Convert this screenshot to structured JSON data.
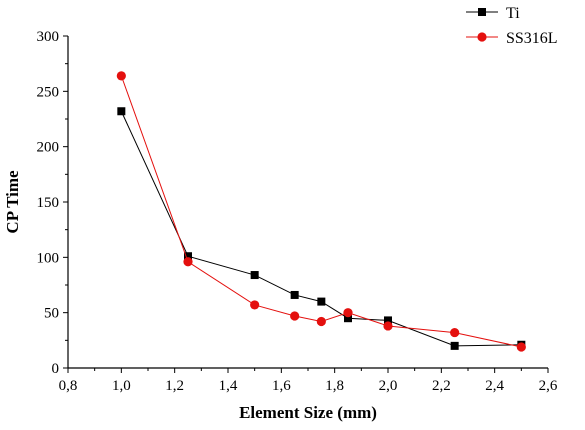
{
  "chart_data": {
    "type": "line",
    "xlabel": "Element Size (mm)",
    "ylabel": "CP Time",
    "xlim": [
      0.8,
      2.6
    ],
    "ylim": [
      0,
      300
    ],
    "x_ticks": [
      "0,8",
      "1,0",
      "1,2",
      "1,4",
      "1,6",
      "1,8",
      "2,0",
      "2,2",
      "2,4",
      "2,6"
    ],
    "y_ticks": [
      "0",
      "50",
      "100",
      "150",
      "200",
      "250",
      "300"
    ],
    "grid": false,
    "legend": "top-right",
    "series": [
      {
        "name": "Ti",
        "marker": "square",
        "color": "#000000",
        "x": [
          1.0,
          1.25,
          1.5,
          1.65,
          1.75,
          1.85,
          2.0,
          2.25,
          2.5
        ],
        "y": [
          232,
          101,
          84,
          66,
          60,
          45,
          43,
          20,
          21
        ]
      },
      {
        "name": "SS316L",
        "marker": "circle",
        "color": "#e4100e",
        "x": [
          1.0,
          1.25,
          1.5,
          1.65,
          1.75,
          1.85,
          2.0,
          2.25,
          2.5
        ],
        "y": [
          264,
          96,
          57,
          47,
          42,
          50,
          38,
          32,
          19
        ]
      }
    ]
  }
}
